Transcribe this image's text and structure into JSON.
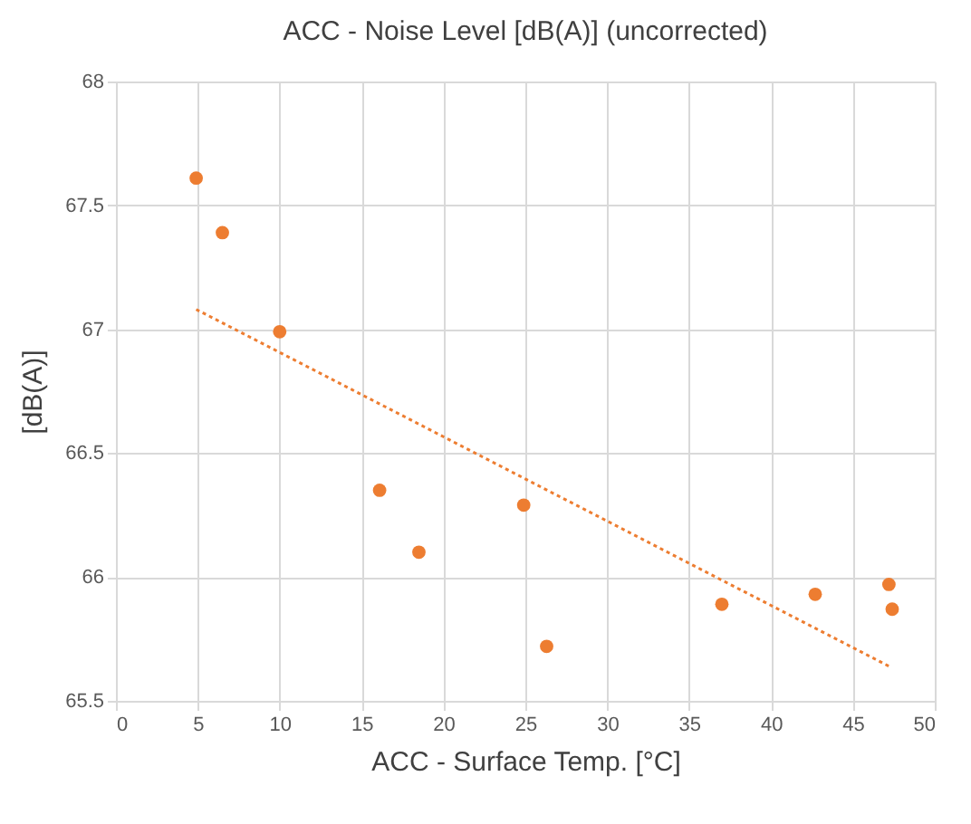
{
  "chart_data": {
    "type": "scatter",
    "title": "ACC - Noise Level [dB(A)] (uncorrected)",
    "xlabel": "ACC -  Surface Temp. [°C]",
    "ylabel": "[dB(A)]",
    "xlim": [
      0,
      50
    ],
    "xticks": [
      0,
      5,
      10,
      15,
      20,
      25,
      30,
      35,
      40,
      45,
      50
    ],
    "ylim": [
      65.5,
      68
    ],
    "yticks": [
      65.5,
      66,
      66.5,
      67,
      67.5,
      68
    ],
    "grid": true,
    "series": [
      {
        "color": "#ed7d31",
        "marker": "circle",
        "x": [
          4.9,
          6.5,
          10,
          16.1,
          18.5,
          24.9,
          26.3,
          37,
          42.7,
          47.2,
          47.4
        ],
        "values": [
          67.61,
          67.39,
          66.99,
          66.35,
          66.1,
          66.29,
          65.72,
          65.89,
          65.93,
          65.97,
          65.87
        ]
      },
      {
        "type": "line",
        "color": "#ed7d31",
        "line_style": "dotted",
        "marker": "none",
        "x": [
          4.9,
          47.2
        ],
        "values": [
          67.08,
          65.64
        ]
      }
    ]
  }
}
